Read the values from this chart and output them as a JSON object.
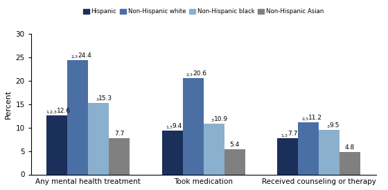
{
  "categories": [
    "Any mental health treatment",
    "Took medication",
    "Received counseling or therapy"
  ],
  "groups": [
    "Hispanic",
    "Non-Hispanic white",
    "Non-Hispanic black",
    "Non-Hispanic Asian"
  ],
  "colors": [
    "#1a2f5a",
    "#4a6fa5",
    "#8ab0cd",
    "#808080"
  ],
  "values": [
    [
      12.6,
      24.4,
      15.3,
      7.7
    ],
    [
      9.4,
      20.6,
      10.9,
      5.4
    ],
    [
      7.7,
      11.2,
      9.5,
      4.8
    ]
  ],
  "superscripts": [
    [
      "1,2,3",
      "2,3",
      "3",
      ""
    ],
    [
      "1,3",
      "2,3",
      "3",
      ""
    ],
    [
      "1,3",
      "2,3",
      "3",
      ""
    ]
  ],
  "value_labels": [
    [
      "12.6",
      "24.4",
      "15.3",
      "7.7"
    ],
    [
      "9.4",
      "20.6",
      "10.9",
      "5.4"
    ],
    [
      "7.7",
      "11.2",
      "9.5",
      "4.8"
    ]
  ],
  "ylabel": "Percent",
  "ylim": [
    0,
    30
  ],
  "yticks": [
    0,
    5,
    10,
    15,
    20,
    25,
    30
  ],
  "bar_width": 0.18,
  "legend_labels": [
    "Hispanic",
    "Non-Hispanic white",
    "Non-Hispanic black",
    "Non-Hispanic Asian"
  ]
}
